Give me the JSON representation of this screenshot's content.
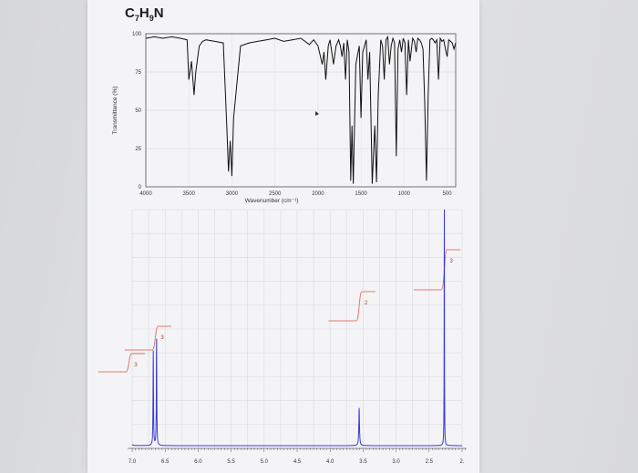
{
  "formula": {
    "c": "C",
    "c_n": "7",
    "h": "H",
    "h_n": "9",
    "n": "N"
  },
  "chart_data": [
    {
      "type": "line",
      "title": "",
      "xlabel": "Wavenumber (cm⁻¹)",
      "ylabel": "Transmittance (%)",
      "xlim": [
        4000,
        400
      ],
      "ylim": [
        0,
        100
      ],
      "x_ticks": [
        "4000",
        "3500",
        "3000",
        "2500",
        "2000",
        "1500",
        "1000",
        "500"
      ],
      "y_ticks": [
        "0",
        "25",
        "50",
        "75",
        "100"
      ],
      "series": [
        {
          "x": [
            4000,
            3900,
            3800,
            3700,
            3600,
            3520,
            3500,
            3470,
            3440,
            3420,
            3380,
            3340,
            3300,
            3200,
            3100,
            3060,
            3040,
            3020,
            3000,
            2980,
            2900,
            2800,
            2700,
            2600,
            2500,
            2400,
            2300,
            2200,
            2100,
            2050,
            2000,
            1950,
            1930,
            1910,
            1880,
            1860,
            1840,
            1820,
            1790,
            1760,
            1740,
            1720,
            1700,
            1680,
            1660,
            1640,
            1620,
            1605,
            1590,
            1580,
            1560,
            1520,
            1500,
            1480,
            1460,
            1440,
            1420,
            1400,
            1370,
            1340,
            1320,
            1300,
            1270,
            1250,
            1230,
            1210,
            1190,
            1170,
            1150,
            1130,
            1110,
            1090,
            1070,
            1050,
            1030,
            1010,
            990,
            970,
            950,
            930,
            900,
            880,
            860,
            840,
            820,
            800,
            780,
            760,
            740,
            720,
            700,
            680,
            660,
            640,
            620,
            600,
            580,
            560,
            540,
            520,
            500,
            480,
            460,
            440,
            420,
            400
          ],
          "y": [
            97,
            98,
            97,
            98,
            97,
            96,
            70,
            82,
            60,
            75,
            92,
            95,
            96,
            95,
            94,
            40,
            10,
            30,
            7,
            45,
            92,
            94,
            95,
            96,
            97,
            95,
            96,
            97,
            93,
            96,
            92,
            80,
            88,
            70,
            92,
            96,
            88,
            80,
            92,
            96,
            92,
            85,
            94,
            70,
            96,
            88,
            4,
            40,
            2,
            30,
            80,
            92,
            45,
            88,
            92,
            96,
            70,
            88,
            2,
            40,
            3,
            60,
            96,
            92,
            70,
            96,
            98,
            80,
            92,
            97,
            94,
            20,
            90,
            96,
            88,
            97,
            94,
            60,
            96,
            82,
            97,
            95,
            88,
            97,
            96,
            94,
            90,
            55,
            4,
            60,
            96,
            97,
            96,
            94,
            96,
            70,
            97,
            95,
            96,
            90,
            85,
            96,
            95,
            94,
            90,
            94
          ]
        }
      ]
    },
    {
      "type": "line",
      "title": "",
      "xlabel": "",
      "ylabel": "",
      "xlim": [
        7.0,
        2.0
      ],
      "x_ticks": [
        "7.0",
        "6.5",
        "6.0",
        "5.5",
        "5.0",
        "4.5",
        "4.0",
        "3.5",
        "3.0",
        "2.5",
        "2."
      ],
      "integration_labels": [
        "3",
        "3",
        "2",
        "3"
      ],
      "peaks_ppm": [
        7.05,
        6.65,
        3.56,
        2.27
      ]
    }
  ]
}
